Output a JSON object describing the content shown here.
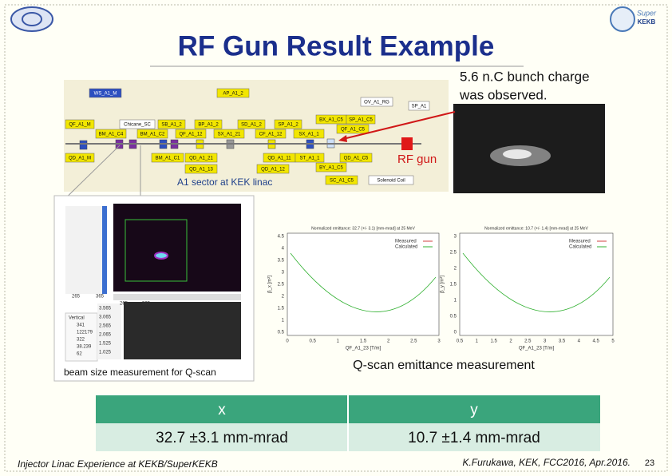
{
  "header": {
    "title": "RF Gun Result Example"
  },
  "logo": {
    "lines": [
      "Super",
      "KEKB"
    ]
  },
  "callout": {
    "lines": [
      "5.6 n.C bunch charge",
      "was observed."
    ]
  },
  "beamline": {
    "rf_gun_label": "RF gun",
    "sector_label": "A1 sector at KEK linac",
    "elements": [
      "WS_A1_M",
      "AP_A1_2",
      "QF_A1_M",
      "Chicane_SC",
      "SB_A1_2",
      "BP_A1_2",
      "SD_A1_2",
      "SP_A1_2",
      "BX_A1_C5",
      "SP_A1_C5",
      "BM_A1_C4",
      "BM_A1_C2",
      "QF_A1_12",
      "SX_A1_21",
      "CF_A1_12",
      "SX_A1_1",
      "QF_A1_C5",
      "QD_A1_M",
      "BM_A1_C1",
      "QD_A1_21",
      "QD_A1_11",
      "ST_A1_1",
      "QD_A1_C5",
      "QD_A1_13",
      "QD_A1_12",
      "BY_A1_C5",
      "SC_A1_C5",
      "Solenoid Coil",
      "OV_A1_RG",
      "SP_A1"
    ]
  },
  "beam_profile": {
    "caption": "beam size measurement for Q-scan",
    "x_labels": [
      "265",
      "365",
      "265",
      "365"
    ],
    "side_ticks": [
      "3.565",
      "3.065",
      "2.565",
      "2.065",
      "1.525",
      "1.025"
    ],
    "readout": [
      "Vertical",
      "341",
      "122179",
      "322",
      "38.239",
      "62"
    ]
  },
  "emittance": {
    "caption": "Q-scan emittance measurement",
    "plots": [
      {
        "title": "Normalized emittance: 32.7 (+/- 3.1) [mm-mrad] at 25 MeV",
        "ylabel": "β_x [m²]",
        "xlabel": "QF_A1_23 [T/m]",
        "legend": [
          "Measured",
          "Calculated"
        ],
        "yticks": [
          "4.5",
          "4",
          "3.5",
          "3",
          "2.5",
          "2",
          "1.5",
          "1",
          "0.5"
        ],
        "xticks": [
          "0",
          "0.5",
          "1",
          "1.5",
          "2",
          "2.5",
          "3"
        ]
      },
      {
        "title": "Normalized emittance: 10.7 (+/- 1.4) [mm-mrad] at 25 MeV",
        "ylabel": "β_y [m²]",
        "xlabel": "QF_A1_23 [T/m]",
        "legend": [
          "Measured",
          "Calculated"
        ],
        "yticks": [
          "3",
          "2.5",
          "2",
          "1.5",
          "1",
          "0.5",
          "0"
        ],
        "xticks": [
          "0.5",
          "1",
          "1.5",
          "2",
          "2.5",
          "3",
          "3.5",
          "4",
          "4.5",
          "5"
        ]
      }
    ]
  },
  "results_table": {
    "header": [
      "x",
      "y"
    ],
    "rows": [
      [
        "32.7 ±3.1 mm-mrad",
        "10.7 ±1.4  mm-mrad"
      ]
    ]
  },
  "footer": {
    "left": "Injector Linac Experience at KEKB/SuperKEKB",
    "right": "K.Furukawa, KEK, FCC2016, Apr.2016.",
    "page": "23"
  }
}
